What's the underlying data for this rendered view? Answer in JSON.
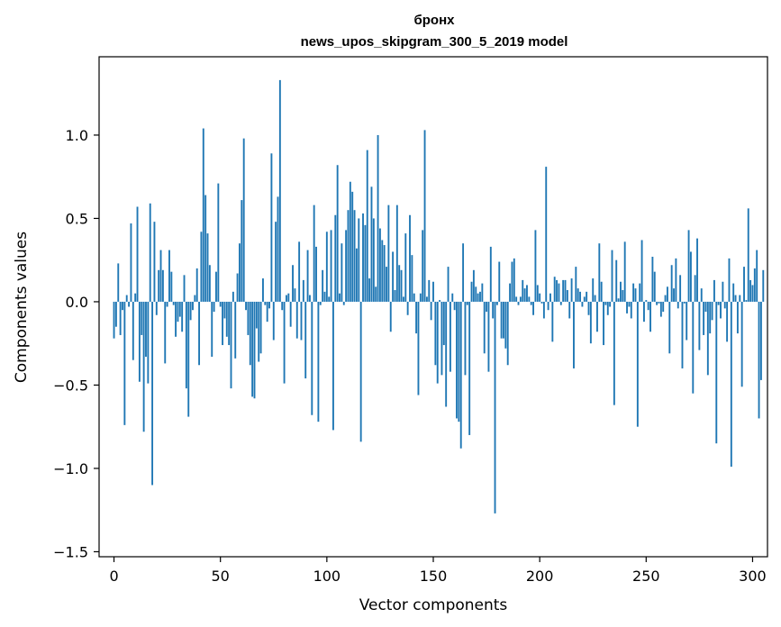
{
  "chart_data": {
    "type": "bar",
    "title": "бронх",
    "subtitle": "news_upos_skipgram_300_5_2019 model",
    "xlabel": "Vector components",
    "ylabel": "Components values",
    "xlim": [
      -7,
      307
    ],
    "ylim": [
      -1.53,
      1.47
    ],
    "xticks": [
      0,
      50,
      100,
      150,
      200,
      250,
      300
    ],
    "yticks": [
      -1.5,
      -1.0,
      -0.5,
      0.0,
      0.5,
      1.0
    ],
    "ytick_labels": [
      "−1.5",
      "−1.0",
      "−0.5",
      "0.0",
      "0.5",
      "1.0"
    ],
    "bar_color": "#1f77b4",
    "values": [
      -0.22,
      -0.15,
      0.23,
      -0.2,
      -0.05,
      -0.74,
      0.04,
      -0.03,
      0.47,
      -0.35,
      0.05,
      0.57,
      -0.48,
      -0.2,
      -0.78,
      -0.33,
      -0.49,
      0.59,
      -1.1,
      0.48,
      -0.08,
      0.19,
      0.31,
      0.19,
      -0.37,
      -0.03,
      0.31,
      0.18,
      -0.02,
      -0.21,
      -0.12,
      -0.09,
      -0.18,
      0.16,
      -0.52,
      -0.69,
      -0.11,
      -0.05,
      0.04,
      0.2,
      -0.38,
      0.42,
      1.04,
      0.64,
      0.41,
      0.22,
      -0.33,
      -0.06,
      0.18,
      0.71,
      -0.03,
      -0.26,
      -0.1,
      -0.21,
      -0.26,
      -0.52,
      0.06,
      -0.34,
      0.17,
      0.35,
      0.61,
      0.98,
      -0.05,
      -0.2,
      -0.38,
      -0.57,
      -0.58,
      -0.16,
      -0.36,
      -0.31,
      0.14,
      -0.02,
      -0.12,
      -0.04,
      0.89,
      -0.23,
      0.48,
      0.63,
      1.33,
      -0.05,
      -0.49,
      0.04,
      0.05,
      -0.15,
      0.22,
      0.08,
      -0.22,
      0.36,
      -0.23,
      0.13,
      -0.46,
      0.31,
      0.04,
      -0.68,
      0.58,
      0.33,
      -0.72,
      -0.02,
      0.19,
      0.06,
      0.42,
      0.03,
      0.43,
      -0.77,
      0.52,
      0.82,
      0.05,
      0.35,
      -0.02,
      0.43,
      0.55,
      0.72,
      0.66,
      0.55,
      0.32,
      0.5,
      -0.84,
      0.53,
      0.46,
      0.91,
      0.14,
      0.69,
      0.5,
      0.09,
      1.0,
      0.44,
      0.37,
      0.34,
      0.21,
      0.58,
      -0.18,
      0.3,
      0.07,
      0.58,
      0.22,
      0.19,
      0.03,
      0.41,
      -0.08,
      0.52,
      0.28,
      0.05,
      -0.19,
      -0.56,
      0.05,
      0.43,
      1.03,
      0.03,
      0.13,
      -0.11,
      0.12,
      -0.38,
      -0.49,
      0.01,
      -0.44,
      -0.26,
      -0.63,
      0.21,
      -0.42,
      0.05,
      -0.05,
      -0.7,
      -0.72,
      -0.88,
      0.35,
      -0.44,
      -0.02,
      -0.8,
      0.12,
      0.19,
      0.09,
      0.05,
      0.06,
      0.11,
      -0.31,
      -0.06,
      -0.42,
      0.33,
      -0.1,
      -1.27,
      -0.02,
      0.24,
      -0.22,
      -0.22,
      -0.28,
      -0.38,
      0.11,
      0.24,
      0.26,
      0.03,
      -0.02,
      0.03,
      0.13,
      0.08,
      0.1,
      0.03,
      -0.02,
      -0.08,
      0.43,
      0.1,
      0.05,
      -0.01,
      -0.1,
      0.81,
      -0.05,
      0.05,
      -0.24,
      0.15,
      0.13,
      0.11,
      -0.02,
      0.13,
      0.13,
      0.07,
      -0.1,
      0.14,
      -0.4,
      0.21,
      0.08,
      0.06,
      -0.03,
      0.03,
      0.06,
      -0.08,
      -0.25,
      0.14,
      0.04,
      -0.18,
      0.35,
      0.12,
      -0.26,
      -0.02,
      -0.08,
      -0.03,
      0.31,
      -0.62,
      0.25,
      0.02,
      0.12,
      0.07,
      0.36,
      -0.07,
      -0.03,
      -0.1,
      0.11,
      0.08,
      -0.75,
      0.11,
      0.37,
      -0.12,
      0.01,
      -0.05,
      -0.18,
      0.27,
      0.18,
      -0.02,
      -0.01,
      -0.09,
      -0.06,
      0.04,
      0.09,
      -0.31,
      0.22,
      0.08,
      0.26,
      -0.04,
      0.16,
      -0.4,
      -0.01,
      -0.23,
      0.43,
      0.3,
      -0.55,
      0.16,
      0.38,
      -0.29,
      0.08,
      -0.2,
      -0.06,
      -0.44,
      -0.19,
      -0.11,
      0.13,
      -0.85,
      -0.02,
      -0.1,
      0.12,
      -0.04,
      -0.24,
      0.26,
      -0.99,
      0.11,
      0.04,
      -0.19,
      0.04,
      -0.51,
      0.21,
      0.01,
      0.56,
      0.13,
      0.1,
      0.2,
      0.31,
      -0.7,
      -0.47,
      0.19
    ],
    "values_note": "approximate readings; axis spans 0-300 components"
  }
}
